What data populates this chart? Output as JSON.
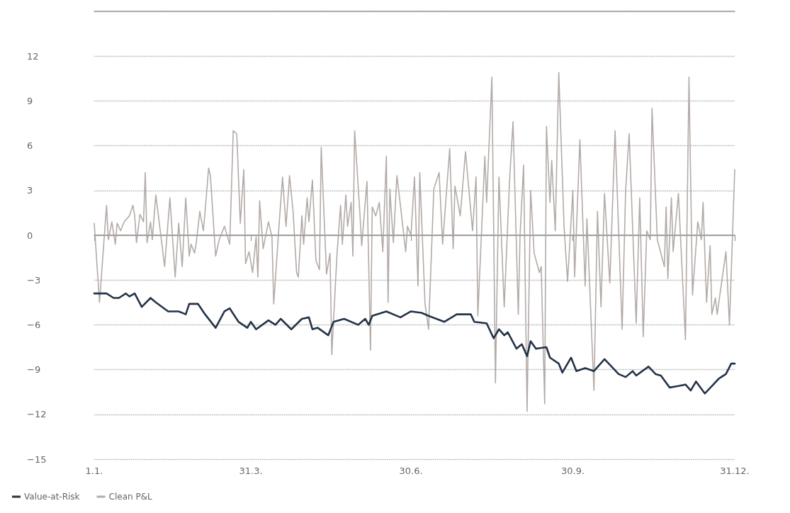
{
  "chart_data": {
    "type": "line",
    "xlim": [
      "--01-01",
      "--12-31"
    ],
    "xticks": [
      {
        "value": "--01-01",
        "label": "1.1."
      },
      {
        "value": "--03-31",
        "label": "31.3."
      },
      {
        "value": "--06-30",
        "label": "30.6."
      },
      {
        "value": "--09-30",
        "label": "30.9."
      },
      {
        "value": "--12-31",
        "label": "31.12."
      }
    ],
    "ylim": [
      -15,
      15
    ],
    "yticks": [
      {
        "value": -15,
        "label": "−15"
      },
      {
        "value": -12,
        "label": "−12"
      },
      {
        "value": -9,
        "label": "−9"
      },
      {
        "value": -6,
        "label": "−6"
      },
      {
        "value": -3,
        "label": "−3"
      },
      0,
      3,
      6,
      9,
      12,
      {
        "value": 15,
        "label": null
      }
    ],
    "grid": "y",
    "legend": "bottom left",
    "marker": "none",
    "line_style": "solid",
    "ref_lines": [
      {
        "axis": "y",
        "value": 0,
        "color": "#9a9a9a",
        "line_style": "solid"
      }
    ],
    "series": [
      {
        "name": "Value-at-Risk",
        "color": "#243447",
        "x": [
          "--01-01",
          "--01-08",
          "--01-12",
          "--01-15",
          "--01-19",
          "--01-21",
          "--01-24",
          "--01-28",
          "--02-02",
          "--02-05",
          "--02-12",
          "--02-18",
          "--02-22",
          "--02-24",
          "--03-01",
          "--03-05",
          "--03-11",
          "--03-16",
          "--03-19",
          "--03-24",
          "--03-29",
          "--03-31",
          "--04-03",
          "--04-10",
          "--04-14",
          "--04-17",
          "--04-23",
          "--04-29",
          "--05-03",
          "--05-05",
          "--05-08",
          "--05-14",
          "--05-17",
          "--05-23",
          "--05-31",
          "--06-04",
          "--06-06",
          "--06-08",
          "--06-16",
          "--06-24",
          "--06-30",
          "--07-06",
          "--07-10",
          "--07-19",
          "--07-26",
          "--08-03",
          "--08-05",
          "--08-12",
          "--08-16",
          "--08-19",
          "--08-22",
          "--08-24",
          "--08-29",
          "--09-01",
          "--09-04",
          "--09-06",
          "--09-09",
          "--09-15",
          "--09-17",
          "--09-22",
          "--09-24",
          "--09-29",
          "--10-02",
          "--10-07",
          "--10-12",
          "--10-18",
          "--10-26",
          "--10-30",
          "--11-03",
          "--11-05",
          "--11-12",
          "--11-16",
          "--11-19",
          "--11-24",
          "--11-29",
          "--12-03",
          "--12-06",
          "--12-09",
          "--12-14",
          "--12-18",
          "--12-22",
          "--12-26",
          "--12-29",
          "--12-31"
        ],
        "values": [
          -3.9,
          -3.9,
          -4.2,
          -4.2,
          -3.9,
          -4.1,
          -3.9,
          -4.8,
          -4.2,
          -4.5,
          -5.1,
          -5.1,
          -5.3,
          -4.6,
          -4.6,
          -5.3,
          -6.2,
          -5.1,
          -4.9,
          -5.8,
          -6.2,
          -5.8,
          -6.3,
          -5.7,
          -6,
          -5.6,
          -6.3,
          -5.6,
          -5.5,
          -6.3,
          -6.2,
          -6.7,
          -5.8,
          -5.6,
          -6,
          -5.6,
          -6,
          -5.4,
          -5.1,
          -5.5,
          -5.1,
          -5.2,
          -5.4,
          -5.8,
          -5.3,
          -5.3,
          -5.8,
          -5.9,
          -6.9,
          -6.3,
          -6.7,
          -6.5,
          -7.6,
          -7.3,
          -8.1,
          -7.1,
          -7.6,
          -7.5,
          -8.2,
          -8.6,
          -9.2,
          -8.2,
          -9.1,
          -8.9,
          -9.1,
          -8.3,
          -9.3,
          -9.5,
          -9.1,
          -9.4,
          -8.8,
          -9.3,
          -9.4,
          -10.2,
          -10.1,
          -10,
          -10.4,
          -9.8,
          -10.6,
          -10.1,
          -9.6,
          -9.3,
          -8.6,
          -8.6
        ]
      },
      {
        "name": "Clean P&L",
        "color": "#b3aba7",
        "x": [
          "--01-01",
          "--01-04",
          "--01-08",
          "--01-09",
          "--01-11",
          "--01-13",
          "--01-14",
          "--01-16",
          "--01-18",
          "--01-21",
          "--01-23",
          "--01-24",
          "--01-25",
          "--01-27",
          "--01-29",
          "--01-30",
          "--01-31",
          "--02-02",
          "--02-03",
          "--02-05",
          "--02-07",
          "--02-10",
          "--02-13",
          "--02-16",
          "--02-18",
          "--02-20",
          "--02-22",
          "--02-24",
          "--02-25",
          "--02-27",
          "--02-28",
          "--03-02",
          "--03-04",
          "--03-05",
          "--03-07",
          "--03-08",
          "--03-11",
          "--03-13",
          "--03-16",
          "--03-19",
          "--03-21",
          "--03-23",
          "--03-25",
          "--03-27",
          "--03-28",
          "--03-30",
          "--04-01",
          "--04-03",
          "--04-04",
          "--04-05",
          "--04-07",
          "--04-10",
          "--04-12",
          "--04-13",
          "--04-16",
          "--04-18",
          "--04-20",
          "--04-22",
          "--04-24",
          "--04-26",
          "--04-27",
          "--04-29",
          "--04-30",
          "--05-02",
          "--05-03",
          "--05-05",
          "--05-07",
          "--05-09",
          "--05-10",
          "--05-13",
          "--05-15",
          "--05-16",
          "--05-19",
          "--05-21",
          "--05-22",
          "--05-24",
          "--05-25",
          "--05-27",
          "--05-28",
          "--05-29",
          "--06-01",
          "--06-02",
          "--06-05",
          "--06-07",
          "--06-08",
          "--06-10",
          "--06-12",
          "--06-14",
          "--06-16",
          "--06-17",
          "--06-18",
          "--06-20",
          "--06-22",
          "--06-24",
          "--06-27",
          "--06-28",
          "--06-30",
          "--07-02",
          "--07-04",
          "--07-05",
          "--07-08",
          "--07-10",
          "--07-13",
          "--07-16",
          "--07-18",
          "--07-22",
          "--07-24",
          "--07-25",
          "--07-28",
          "--07-31",
          "--08-04",
          "--08-06",
          "--08-07",
          "--08-11",
          "--08-12",
          "--08-15",
          "--08-17",
          "--08-19",
          "--08-22",
          "--08-25",
          "--08-27",
          "--08-30",
          "--08-31",
          "--09-02",
          "--09-04",
          "--09-06",
          "--09-08",
          "--09-11",
          "--09-12",
          "--09-14",
          "--09-15",
          "--09-17",
          "--09-18",
          "--09-20",
          "--09-22",
          "--09-25",
          "--09-27",
          "--09-30",
          "--10-01",
          "--10-04",
          "--10-07",
          "--10-08",
          "--10-12",
          "--10-14",
          "--10-16",
          "--10-18",
          "--10-21",
          "--10-24",
          "--10-28",
          "--10-30",
          "--11-01",
          "--11-05",
          "--11-07",
          "--11-09",
          "--11-11",
          "--11-13",
          "--11-14",
          "--11-17",
          "--11-21",
          "--11-22",
          "--11-23",
          "--11-25",
          "--11-26",
          "--11-29",
          "--12-03",
          "--12-05",
          "--12-07",
          "--12-10",
          "--12-12",
          "--12-13",
          "--12-15",
          "--12-17",
          "--12-18",
          "--12-20",
          "--12-21",
          "--12-26",
          "--12-28",
          "--12-31"
        ],
        "values": [
          0.8,
          -4.5,
          2,
          -0.3,
          0.9,
          -0.6,
          0.8,
          0.3,
          0.9,
          1.3,
          2,
          1.3,
          -0.5,
          1.4,
          0.9,
          4.2,
          -0.5,
          0.9,
          -0.3,
          2.7,
          0.8,
          -2.1,
          2.5,
          -2.8,
          0.8,
          -2.1,
          2.5,
          -1.4,
          -0.6,
          -1.2,
          -0.5,
          1.6,
          0.3,
          1.6,
          4.5,
          4,
          -1.4,
          -0.3,
          0.6,
          -0.6,
          7,
          6.8,
          0.8,
          4.4,
          -1.9,
          -1.1,
          -2.5,
          -0.1,
          -2.8,
          2.3,
          -0.9,
          0.9,
          -0.1,
          -4.6,
          0.6,
          3.9,
          0.6,
          4,
          1.6,
          -2.5,
          -2.8,
          1.3,
          -0.6,
          2.5,
          0.9,
          3.7,
          -1.7,
          -2.3,
          5.9,
          -2.6,
          -1.2,
          -8,
          -1.2,
          2,
          -0.6,
          2.7,
          0.6,
          2.2,
          -1.4,
          7,
          1.4,
          -0.7,
          3.6,
          -7.7,
          1.9,
          1.3,
          2.2,
          -1.1,
          5.3,
          -4.5,
          3.1,
          -0.5,
          4,
          2,
          -1.1,
          0.6,
          0,
          3.9,
          -3.4,
          4.2,
          -4.6,
          -6.3,
          3.1,
          4.2,
          -0.6,
          5.8,
          -0.9,
          3.3,
          1.3,
          5.6,
          0.3,
          3.9,
          -5.4,
          5.3,
          2.2,
          10.6,
          -9.9,
          3.9,
          -4.8,
          3.6,
          7.6,
          -5.3,
          0,
          4.7,
          -11.8,
          3,
          -1.2,
          -2.5,
          -2.1,
          -11.3,
          7.3,
          2.2,
          5,
          0.3,
          10.9,
          0.6,
          -3.1,
          3,
          -2.8,
          6.4,
          -3.4,
          1.1,
          -10.4,
          1.6,
          -4.8,
          2.8,
          -3.2,
          7,
          -6.3,
          3,
          6.8,
          -5.9,
          2.5,
          -6.8,
          0.3,
          -0.3,
          8.5,
          -0.3,
          -2.1,
          1.9,
          -2.9,
          2.5,
          -1.1,
          2.8,
          -7,
          10.6,
          -4,
          0.9,
          -0.3,
          2.2,
          -4.5,
          -0.7,
          -5.3,
          -4.2,
          -5.3,
          -1.1,
          -6,
          4.4
        ]
      }
    ]
  }
}
